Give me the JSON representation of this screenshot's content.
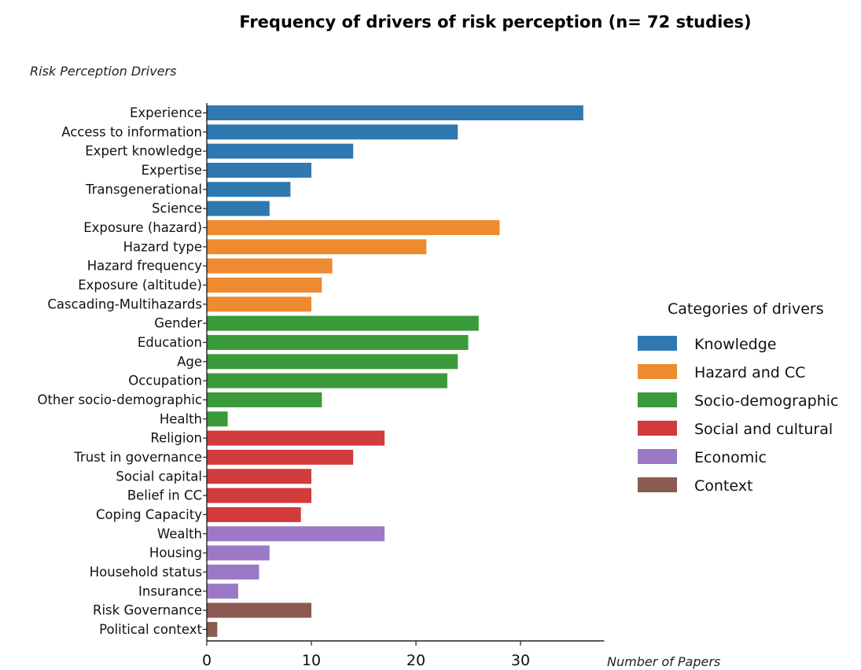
{
  "chart_data": {
    "type": "bar",
    "orientation": "horizontal",
    "title": "Frequency of drivers of risk perception (n= 72 studies)",
    "ylabel": "Risk Perception Drivers",
    "xlabel": "Number of Papers",
    "xlim": [
      0,
      38
    ],
    "xticks": [
      0,
      10,
      20,
      30
    ],
    "grid": false,
    "legend_placement": "right",
    "legend": {
      "title": "Categories of drivers",
      "entries": [
        {
          "name": "Knowledge",
          "color": "#2f78b0"
        },
        {
          "name": "Hazard and CC",
          "color": "#ee8a2f"
        },
        {
          "name": "Socio-demographic",
          "color": "#3a9a3a"
        },
        {
          "name": "Social and cultural",
          "color": "#d23b3b"
        },
        {
          "name": "Economic",
          "color": "#9b79c6"
        },
        {
          "name": "Context",
          "color": "#8b5a51"
        }
      ]
    },
    "bars": [
      {
        "label": "Experience",
        "value": 36,
        "category": "Knowledge"
      },
      {
        "label": "Access to information",
        "value": 24,
        "category": "Knowledge"
      },
      {
        "label": "Expert knowledge",
        "value": 14,
        "category": "Knowledge"
      },
      {
        "label": "Expertise",
        "value": 10,
        "category": "Knowledge"
      },
      {
        "label": "Transgenerational",
        "value": 8,
        "category": "Knowledge"
      },
      {
        "label": "Science",
        "value": 6,
        "category": "Knowledge"
      },
      {
        "label": "Exposure (hazard)",
        "value": 28,
        "category": "Hazard and CC"
      },
      {
        "label": "Hazard type",
        "value": 21,
        "category": "Hazard and CC"
      },
      {
        "label": "Hazard frequency",
        "value": 12,
        "category": "Hazard and CC"
      },
      {
        "label": "Exposure (altitude)",
        "value": 11,
        "category": "Hazard and CC"
      },
      {
        "label": "Cascading-Multihazards",
        "value": 10,
        "category": "Hazard and CC"
      },
      {
        "label": "Gender",
        "value": 26,
        "category": "Socio-demographic"
      },
      {
        "label": "Education",
        "value": 25,
        "category": "Socio-demographic"
      },
      {
        "label": "Age",
        "value": 24,
        "category": "Socio-demographic"
      },
      {
        "label": "Occupation",
        "value": 23,
        "category": "Socio-demographic"
      },
      {
        "label": "Other socio-demographic",
        "value": 11,
        "category": "Socio-demographic"
      },
      {
        "label": "Health",
        "value": 2,
        "category": "Socio-demographic"
      },
      {
        "label": "Religion",
        "value": 17,
        "category": "Social and cultural"
      },
      {
        "label": "Trust in governance",
        "value": 14,
        "category": "Social and cultural"
      },
      {
        "label": "Social capital",
        "value": 10,
        "category": "Social and cultural"
      },
      {
        "label": "Belief in CC",
        "value": 10,
        "category": "Social and cultural"
      },
      {
        "label": "Coping Capacity",
        "value": 9,
        "category": "Social and cultural"
      },
      {
        "label": "Wealth",
        "value": 17,
        "category": "Economic"
      },
      {
        "label": "Housing",
        "value": 6,
        "category": "Economic"
      },
      {
        "label": "Household status",
        "value": 5,
        "category": "Economic"
      },
      {
        "label": "Insurance",
        "value": 3,
        "category": "Economic"
      },
      {
        "label": "Risk Governance",
        "value": 10,
        "category": "Context"
      },
      {
        "label": "Political context",
        "value": 1,
        "category": "Context"
      }
    ]
  }
}
